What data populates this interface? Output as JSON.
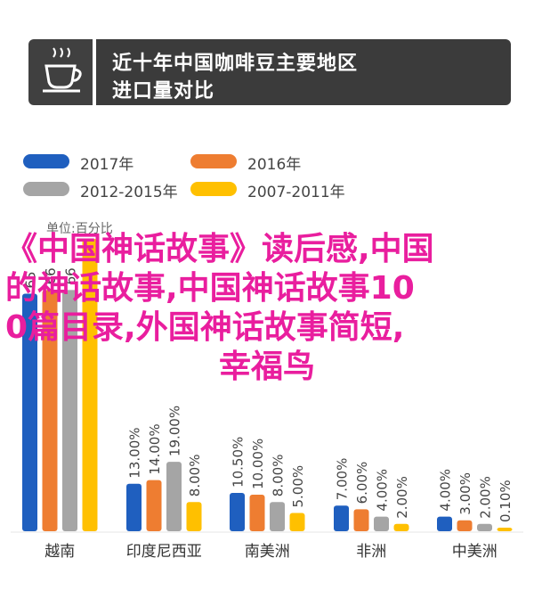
{
  "header": {
    "icon": "coffee-cup-icon",
    "title_line1": "近十年中国咖啡豆主要地区",
    "title_line2": "进口量对比"
  },
  "legend": [
    {
      "name": "2017年",
      "color": "#1f5fbf"
    },
    {
      "name": "2016年",
      "color": "#ee7d31"
    },
    {
      "name": "2012-2015年",
      "color": "#a5a5a5"
    },
    {
      "name": "2007-2011年",
      "color": "#ffc000"
    }
  ],
  "unit": "单位:百分比",
  "overlay_lines": [
    "《中国神话故事》读后感,中国",
    "的神话故事,中国神话故事10",
    "0篇目录,外国神话故事简短,",
    "幸福鸟"
  ],
  "chart_data": {
    "type": "bar",
    "categories": [
      "越南",
      "印度尼西亚",
      "南美洲",
      "非洲",
      "中美洲"
    ],
    "series": [
      {
        "name": "2017年",
        "values": [
          65.0,
          13.0,
          10.5,
          7.0,
          4.0
        ],
        "labels": [
          "65",
          "13.00%",
          "10.50%",
          "7.00%",
          "4.00%"
        ]
      },
      {
        "name": "2016年",
        "values": [
          66.0,
          14.0,
          10.0,
          6.0,
          3.0
        ],
        "labels": [
          "66",
          "14.00%",
          "10.00%",
          "6.00%",
          "3.00%"
        ]
      },
      {
        "name": "2012-2015年",
        "values": [
          66.0,
          19.0,
          8.0,
          4.0,
          2.0
        ],
        "labels": [
          "66",
          "19.00%",
          "8.00%",
          "4.00%",
          "2.00%"
        ]
      },
      {
        "name": "2007-2011年",
        "values": [
          80.0,
          8.0,
          5.0,
          2.0,
          0.1
        ],
        "labels": [
          "",
          "8.00%",
          "5.00%",
          "2.00%",
          "0.10%"
        ]
      }
    ],
    "ylim": [
      0,
      80
    ]
  }
}
